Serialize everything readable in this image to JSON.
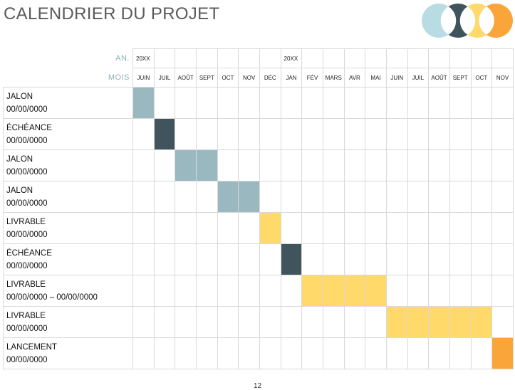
{
  "title": "CALENDRIER DU PROJET",
  "header": {
    "year_label": "AN.",
    "month_label": "MOIS",
    "year_cells": [
      "20XX",
      "",
      "",
      "",
      "",
      "",
      "",
      "20XX",
      "",
      "",
      "",
      "",
      "",
      "",
      "",
      "",
      "",
      ""
    ],
    "months": [
      "JUIN",
      "JUIL",
      "AOÛT",
      "SEPT",
      "OCT",
      "NOV",
      "DÉC",
      "JAN",
      "FÉV",
      "MARS",
      "AVR",
      "MAI",
      "JUIN",
      "JUIL",
      "AOÛT",
      "SEPT",
      "OCT",
      "NOV"
    ]
  },
  "tasks": [
    {
      "kind": "JALON",
      "date": "00/00/0000",
      "start": 0,
      "span": 1,
      "color": "teal"
    },
    {
      "kind": "ÉCHÉANCE",
      "date": "00/00/0000",
      "start": 1,
      "span": 1,
      "color": "dark"
    },
    {
      "kind": "JALON",
      "date": "00/00/0000",
      "start": 2,
      "span": 2,
      "color": "teal"
    },
    {
      "kind": "JALON",
      "date": "00/00/0000",
      "start": 4,
      "span": 2,
      "color": "teal"
    },
    {
      "kind": "LIVRABLE",
      "date": "00/00/0000",
      "start": 6,
      "span": 1,
      "color": "yellow"
    },
    {
      "kind": "ÉCHÉANCE",
      "date": "00/00/0000",
      "start": 7,
      "span": 1,
      "color": "dark"
    },
    {
      "kind": "LIVRABLE",
      "date": "00/00/0000 – 00/00/0000",
      "start": 8,
      "span": 4,
      "color": "yellow"
    },
    {
      "kind": "LIVRABLE",
      "date": "00/00/0000",
      "start": 12,
      "span": 5,
      "color": "yellow"
    },
    {
      "kind": "LANCEMENT",
      "date": "00/00/0000",
      "start": 17,
      "span": 1,
      "color": "orange"
    }
  ],
  "colors": {
    "teal": "#9ab8bf",
    "dark": "#3f545c",
    "yellow": "#ffd96a",
    "orange": "#f9a53a"
  },
  "page_number": "12"
}
